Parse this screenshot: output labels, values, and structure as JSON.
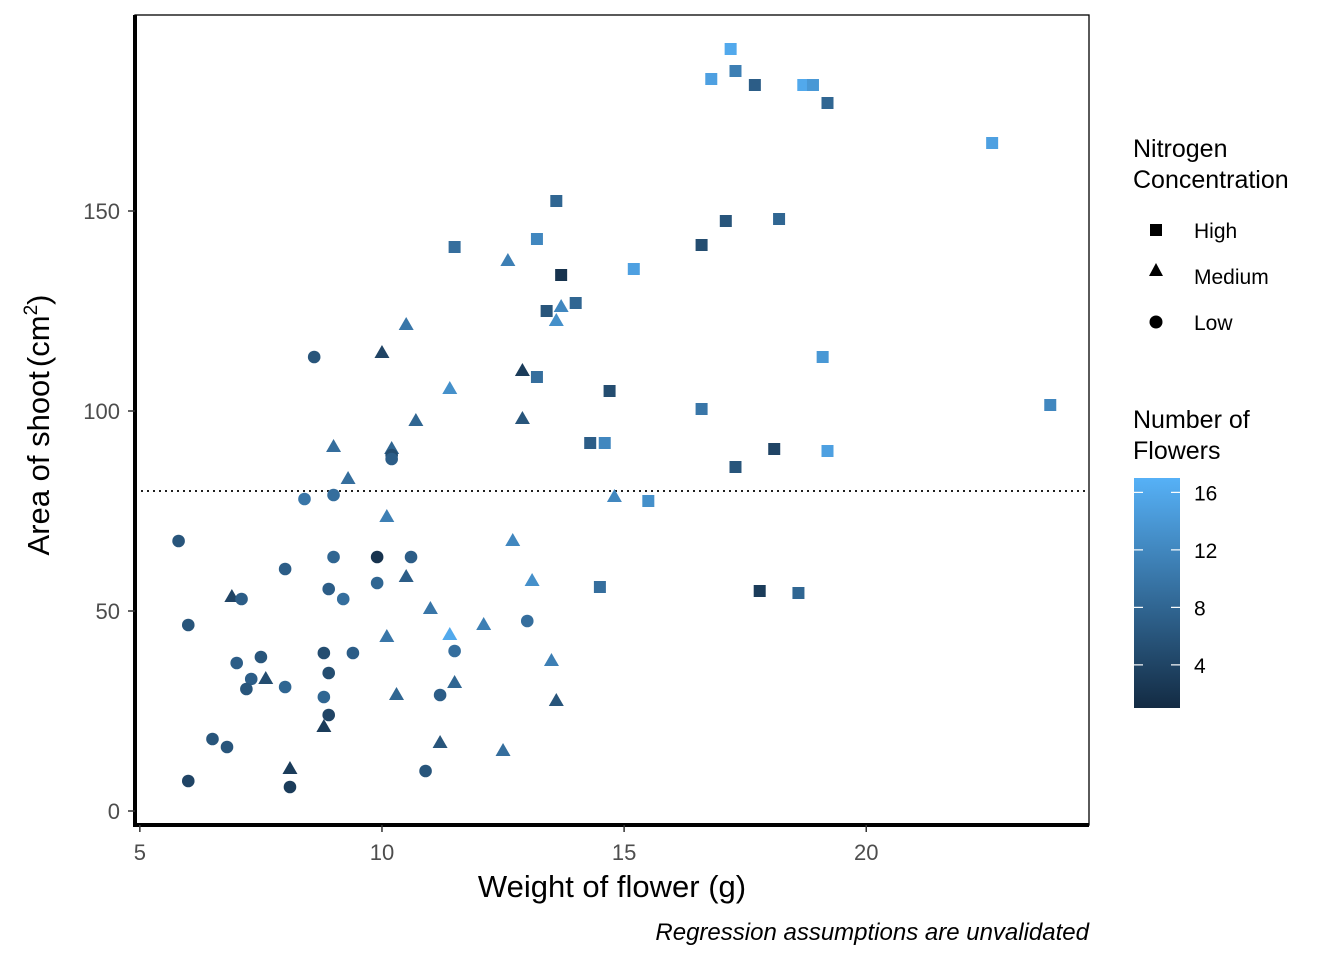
{
  "chart_data": {
    "type": "scatter",
    "xlabel": "Weight of flower (g)",
    "ylabel_main": "Area of shoot",
    "ylabel_unit": "cm",
    "ylabel_exp": "2",
    "caption": "Regression assumptions are unvalidated",
    "xlim": [
      4.9,
      24.6
    ],
    "ylim": [
      -3.5,
      199
    ],
    "x_ticks": [
      5,
      10,
      15,
      20
    ],
    "y_ticks": [
      0,
      50,
      100,
      150
    ],
    "x_tick_labels": [
      "5",
      "10",
      "15",
      "20"
    ],
    "y_tick_labels": [
      "0",
      "50",
      "100",
      "150"
    ],
    "grid": false,
    "reference_line": {
      "y": 80,
      "style": "dotted"
    },
    "shape_legend": {
      "title_line1": "Nitrogen",
      "title_line2": "Concentration",
      "items": [
        {
          "label": "High",
          "shape": "square"
        },
        {
          "label": "Medium",
          "shape": "triangle"
        },
        {
          "label": "Low",
          "shape": "circle"
        }
      ]
    },
    "color_legend": {
      "title_line1": "Number of",
      "title_line2": "Flowers",
      "min": 1,
      "max": 17,
      "ticks": [
        4,
        8,
        12,
        16
      ],
      "tick_labels": [
        "4",
        "8",
        "12",
        "16"
      ],
      "low_color": "#132B43",
      "high_color": "#56B1F7"
    },
    "series": [
      {
        "name": "High",
        "shape": "square",
        "points": [
          {
            "x": 17.2,
            "y": 190.5,
            "flowers": 16
          },
          {
            "x": 16.8,
            "y": 183,
            "flowers": 15
          },
          {
            "x": 17.3,
            "y": 185,
            "flowers": 11
          },
          {
            "x": 17.7,
            "y": 181.5,
            "flowers": 7
          },
          {
            "x": 18.7,
            "y": 181.5,
            "flowers": 16
          },
          {
            "x": 18.9,
            "y": 181.5,
            "flowers": 14
          },
          {
            "x": 19.2,
            "y": 177,
            "flowers": 8
          },
          {
            "x": 22.6,
            "y": 167,
            "flowers": 15
          },
          {
            "x": 13.6,
            "y": 152.5,
            "flowers": 8
          },
          {
            "x": 18.2,
            "y": 148,
            "flowers": 8
          },
          {
            "x": 17.1,
            "y": 147.5,
            "flowers": 6
          },
          {
            "x": 11.5,
            "y": 141,
            "flowers": 9
          },
          {
            "x": 13.2,
            "y": 143,
            "flowers": 12
          },
          {
            "x": 16.6,
            "y": 141.5,
            "flowers": 5
          },
          {
            "x": 15.2,
            "y": 135.5,
            "flowers": 15
          },
          {
            "x": 13.7,
            "y": 134,
            "flowers": 2
          },
          {
            "x": 14.0,
            "y": 127,
            "flowers": 8
          },
          {
            "x": 13.4,
            "y": 125,
            "flowers": 6
          },
          {
            "x": 19.1,
            "y": 113.5,
            "flowers": 14
          },
          {
            "x": 13.2,
            "y": 108.5,
            "flowers": 9
          },
          {
            "x": 14.7,
            "y": 105,
            "flowers": 5
          },
          {
            "x": 16.6,
            "y": 100.5,
            "flowers": 10
          },
          {
            "x": 23.8,
            "y": 101.5,
            "flowers": 12
          },
          {
            "x": 14.3,
            "y": 92,
            "flowers": 7
          },
          {
            "x": 14.6,
            "y": 92,
            "flowers": 12
          },
          {
            "x": 18.1,
            "y": 90.5,
            "flowers": 4
          },
          {
            "x": 19.2,
            "y": 90,
            "flowers": 15
          },
          {
            "x": 17.3,
            "y": 86,
            "flowers": 6
          },
          {
            "x": 15.5,
            "y": 77.5,
            "flowers": 13
          },
          {
            "x": 14.5,
            "y": 56,
            "flowers": 9
          },
          {
            "x": 17.8,
            "y": 55,
            "flowers": 3
          },
          {
            "x": 18.6,
            "y": 54.5,
            "flowers": 8
          }
        ]
      },
      {
        "name": "Medium",
        "shape": "triangle",
        "points": [
          {
            "x": 12.6,
            "y": 137.5,
            "flowers": 11
          },
          {
            "x": 13.6,
            "y": 122.5,
            "flowers": 13
          },
          {
            "x": 13.7,
            "y": 126,
            "flowers": 12
          },
          {
            "x": 10.5,
            "y": 121.5,
            "flowers": 10
          },
          {
            "x": 10.0,
            "y": 114.5,
            "flowers": 4
          },
          {
            "x": 12.9,
            "y": 110,
            "flowers": 3
          },
          {
            "x": 11.4,
            "y": 105.5,
            "flowers": 13
          },
          {
            "x": 12.9,
            "y": 98,
            "flowers": 6
          },
          {
            "x": 10.7,
            "y": 97.5,
            "flowers": 8
          },
          {
            "x": 9.0,
            "y": 91,
            "flowers": 9
          },
          {
            "x": 10.2,
            "y": 90.5,
            "flowers": 8
          },
          {
            "x": 9.3,
            "y": 83,
            "flowers": 9
          },
          {
            "x": 14.8,
            "y": 78.5,
            "flowers": 12
          },
          {
            "x": 10.1,
            "y": 73.5,
            "flowers": 11
          },
          {
            "x": 12.7,
            "y": 67.5,
            "flowers": 12
          },
          {
            "x": 10.5,
            "y": 58.5,
            "flowers": 7
          },
          {
            "x": 13.1,
            "y": 57.5,
            "flowers": 13
          },
          {
            "x": 6.9,
            "y": 53.5,
            "flowers": 4
          },
          {
            "x": 11.0,
            "y": 50.5,
            "flowers": 10
          },
          {
            "x": 12.1,
            "y": 46.5,
            "flowers": 11
          },
          {
            "x": 10.1,
            "y": 43.5,
            "flowers": 10
          },
          {
            "x": 11.4,
            "y": 44,
            "flowers": 16
          },
          {
            "x": 13.5,
            "y": 37.5,
            "flowers": 11
          },
          {
            "x": 7.6,
            "y": 33,
            "flowers": 5
          },
          {
            "x": 11.5,
            "y": 32,
            "flowers": 8
          },
          {
            "x": 10.3,
            "y": 29,
            "flowers": 8
          },
          {
            "x": 13.6,
            "y": 27.5,
            "flowers": 6
          },
          {
            "x": 8.8,
            "y": 21,
            "flowers": 3
          },
          {
            "x": 11.2,
            "y": 17,
            "flowers": 6
          },
          {
            "x": 12.5,
            "y": 15,
            "flowers": 9
          },
          {
            "x": 8.1,
            "y": 10.5,
            "flowers": 3
          }
        ]
      },
      {
        "name": "Low",
        "shape": "circle",
        "points": [
          {
            "x": 8.6,
            "y": 113.5,
            "flowers": 6
          },
          {
            "x": 10.2,
            "y": 89,
            "flowers": 5
          },
          {
            "x": 10.2,
            "y": 88,
            "flowers": 7
          },
          {
            "x": 9.0,
            "y": 79,
            "flowers": 9
          },
          {
            "x": 8.4,
            "y": 78,
            "flowers": 10
          },
          {
            "x": 5.8,
            "y": 67.5,
            "flowers": 6
          },
          {
            "x": 9.0,
            "y": 63.5,
            "flowers": 8
          },
          {
            "x": 9.9,
            "y": 63.5,
            "flowers": 2
          },
          {
            "x": 10.6,
            "y": 63.5,
            "flowers": 7
          },
          {
            "x": 8.0,
            "y": 60.5,
            "flowers": 7
          },
          {
            "x": 9.9,
            "y": 57,
            "flowers": 8
          },
          {
            "x": 8.9,
            "y": 55.5,
            "flowers": 7
          },
          {
            "x": 7.1,
            "y": 53,
            "flowers": 7
          },
          {
            "x": 9.2,
            "y": 53,
            "flowers": 9
          },
          {
            "x": 13.0,
            "y": 47.5,
            "flowers": 9
          },
          {
            "x": 6.0,
            "y": 46.5,
            "flowers": 6
          },
          {
            "x": 8.8,
            "y": 39.5,
            "flowers": 5
          },
          {
            "x": 9.4,
            "y": 39.5,
            "flowers": 7
          },
          {
            "x": 11.5,
            "y": 40,
            "flowers": 9
          },
          {
            "x": 7.5,
            "y": 38.5,
            "flowers": 6
          },
          {
            "x": 7.0,
            "y": 37,
            "flowers": 7
          },
          {
            "x": 8.9,
            "y": 34.5,
            "flowers": 5
          },
          {
            "x": 7.3,
            "y": 33,
            "flowers": 7
          },
          {
            "x": 7.2,
            "y": 30.5,
            "flowers": 6
          },
          {
            "x": 8.0,
            "y": 31,
            "flowers": 8
          },
          {
            "x": 11.2,
            "y": 29,
            "flowers": 7
          },
          {
            "x": 8.8,
            "y": 28.5,
            "flowers": 8
          },
          {
            "x": 8.9,
            "y": 24,
            "flowers": 4
          },
          {
            "x": 6.5,
            "y": 18,
            "flowers": 6
          },
          {
            "x": 6.8,
            "y": 16,
            "flowers": 6
          },
          {
            "x": 10.9,
            "y": 10,
            "flowers": 6
          },
          {
            "x": 6.0,
            "y": 7.5,
            "flowers": 4
          },
          {
            "x": 8.1,
            "y": 6,
            "flowers": 3
          }
        ]
      }
    ]
  }
}
